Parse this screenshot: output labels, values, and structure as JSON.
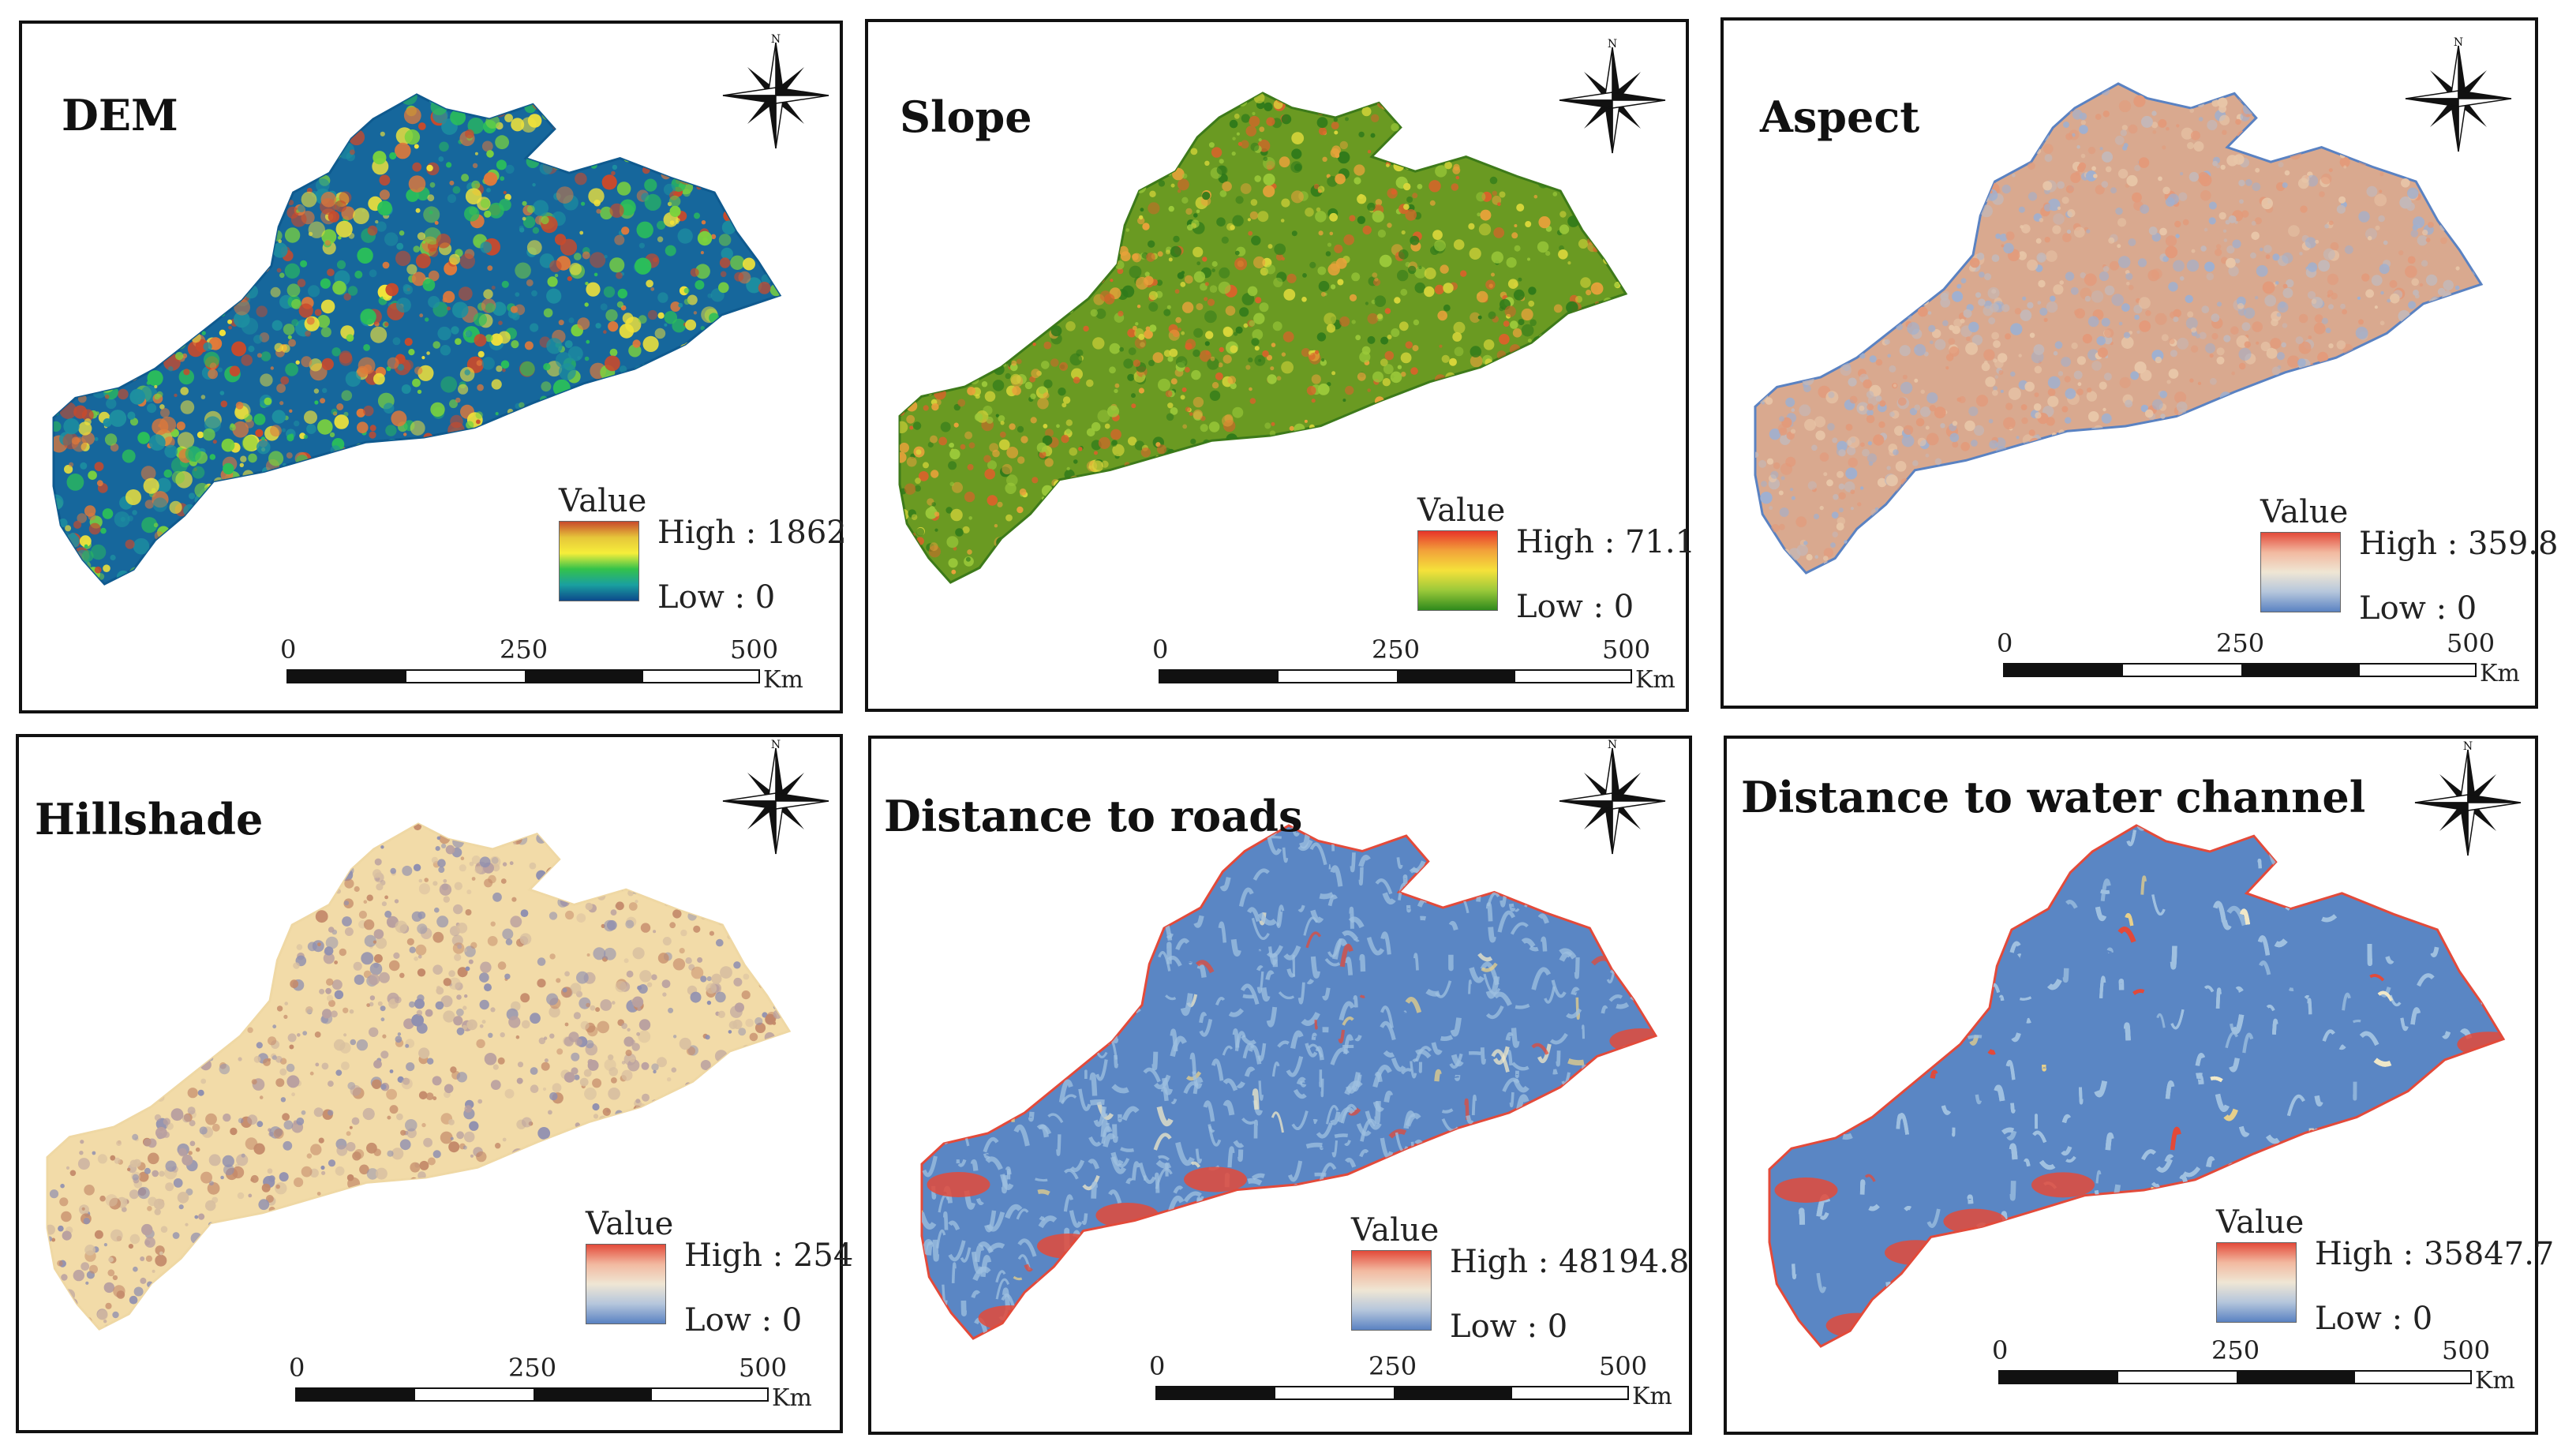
{
  "panels": [
    {
      "id": "dem",
      "title": "DEM",
      "legend": {
        "title": "Value",
        "high": "High : 1862",
        "low": "Low : 0",
        "colors": [
          "#c84a2c",
          "#e6c63a",
          "#f6ee3a",
          "#34c24a",
          "#1aa0a0",
          "#0d4a8c"
        ]
      },
      "map_style": {
        "base": "#16679c",
        "accents": [
          "#1d8fa0",
          "#2bbf5a",
          "#7cd33d",
          "#f0e23a",
          "#e0793a",
          "#c84a2c"
        ],
        "edge": "#0f5a8f"
      },
      "scale": {
        "ticks": [
          "0",
          "250",
          "500"
        ],
        "unit": "Km"
      }
    },
    {
      "id": "slope",
      "title": "Slope",
      "legend": {
        "title": "Value",
        "high": "High : 71.1",
        "low": "Low : 0",
        "colors": [
          "#e8342a",
          "#f2a23a",
          "#f5e23a",
          "#9bc93a",
          "#2f8a1c"
        ]
      },
      "map_style": {
        "base": "#6a9a22",
        "accents": [
          "#2f7a1a",
          "#9bc93a",
          "#d8d63a",
          "#e8a23a",
          "#d8632a"
        ],
        "edge": "#3d7a1a"
      },
      "scale": {
        "ticks": [
          "0",
          "250",
          "500"
        ],
        "unit": "Km"
      }
    },
    {
      "id": "aspect",
      "title": "Aspect",
      "legend": {
        "title": "Value",
        "high": "High : 359.8",
        "low": "Low : 0",
        "colors": [
          "#e34a3a",
          "#f2b9a0",
          "#efe6d4",
          "#b5c6dc",
          "#5a82c2"
        ]
      },
      "map_style": {
        "base": "#d9a98f",
        "accents": [
          "#e39a7a",
          "#c4b8b8",
          "#9fb0d0",
          "#e8c6a8"
        ],
        "edge": "#5a82c2"
      },
      "scale": {
        "ticks": [
          "0",
          "250",
          "500"
        ],
        "unit": "Km"
      }
    },
    {
      "id": "hillshade",
      "title": "Hillshade",
      "legend": {
        "title": "Value",
        "high": "High : 254",
        "low": "Low : 0",
        "colors": [
          "#e34a3a",
          "#f2b9a0",
          "#efe6d4",
          "#b5c6dc",
          "#5a82c2"
        ]
      },
      "map_style": {
        "base": "#f2dba8",
        "accents": [
          "#b9a0a0",
          "#8f8fb0",
          "#d8bfa0",
          "#c48a6a"
        ],
        "edge": "#efd8a4"
      },
      "scale": {
        "ticks": [
          "0",
          "250",
          "500"
        ],
        "unit": "Km"
      }
    },
    {
      "id": "roads",
      "title": "Distance to roads",
      "legend": {
        "title": "Value",
        "high": "High : 48194.8",
        "low": "Low : 0",
        "colors": [
          "#e34a3a",
          "#f2b9a0",
          "#efe6d4",
          "#b5c6dc",
          "#5a82c2"
        ]
      },
      "map_style": {
        "base": "#5a86c4",
        "accents": [
          "#9fc0e0",
          "#f0e8c8",
          "#e8d08a",
          "#e34a3a"
        ],
        "edge": "#e34a3a"
      },
      "scale": {
        "ticks": [
          "0",
          "250",
          "500"
        ],
        "unit": "Km"
      }
    },
    {
      "id": "water",
      "title": "Distance to water channel",
      "legend": {
        "title": "Value",
        "high": "High : 35847.7",
        "low": "Low : 0",
        "colors": [
          "#e34a3a",
          "#f2b9a0",
          "#efe6d4",
          "#b5c6dc",
          "#5a82c2"
        ]
      },
      "map_style": {
        "base": "#5a86c4",
        "accents": [
          "#9fc0e0",
          "#f0e8c8",
          "#e8d08a",
          "#e34a3a"
        ],
        "edge": "#e34a3a"
      },
      "scale": {
        "ticks": [
          "0",
          "250",
          "500"
        ],
        "unit": "Km"
      }
    }
  ],
  "north_arrow": {
    "label": "N"
  }
}
